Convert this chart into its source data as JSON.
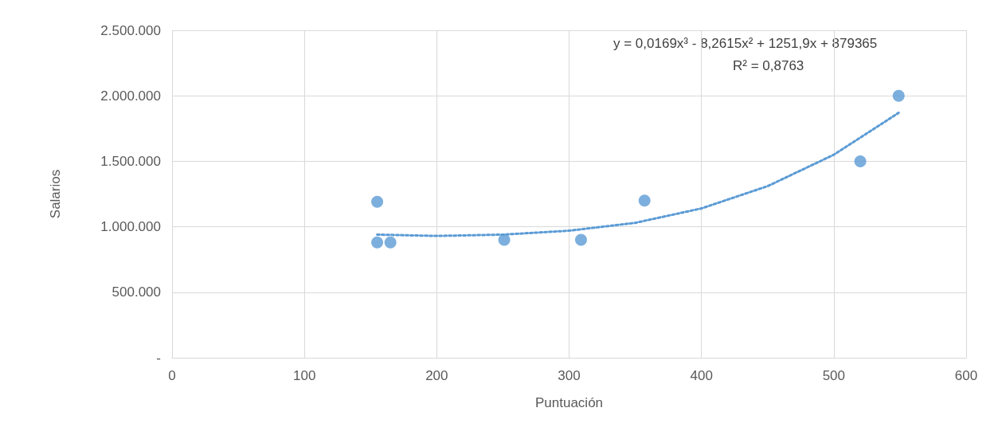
{
  "chart_data": {
    "type": "scatter",
    "xlabel": "Puntuación",
    "ylabel": "Salarios",
    "annotations": [
      "y = 0,0169x³ - 8,2615x² + 1251,9x + 879365",
      "R² = 0,8763"
    ],
    "series": [
      {
        "color": "#5b9bd5",
        "marker": "circle",
        "x": [
          155,
          155,
          165,
          251,
          309,
          357,
          520,
          549
        ],
        "values": [
          1190000,
          880000,
          880000,
          900000,
          900000,
          1200000,
          1500000,
          2000000
        ]
      },
      {
        "type": "line",
        "color": "#5b9bd5",
        "marker": "none",
        "line_style": "dotted",
        "x": [
          155,
          200,
          250,
          300,
          350,
          400,
          450,
          500,
          549
        ],
        "values": [
          940000,
          930000,
          940000,
          970000,
          1030000,
          1140000,
          1310000,
          1550000,
          1870000
        ]
      }
    ],
    "xlim": [
      0,
      600
    ],
    "xticks": [
      0,
      100,
      200,
      300,
      400,
      500,
      600
    ],
    "ylim": [
      0,
      2500000
    ],
    "yticks": [
      {
        "value": 0,
        "label": "-"
      },
      {
        "value": 500000,
        "label": "500.000"
      },
      {
        "value": 1000000,
        "label": "1.000.000"
      },
      {
        "value": 1500000,
        "label": "1.500.000"
      },
      {
        "value": 2000000,
        "label": "2.000.000"
      },
      {
        "value": 2500000,
        "label": "2.500.000"
      }
    ],
    "grid": true
  }
}
